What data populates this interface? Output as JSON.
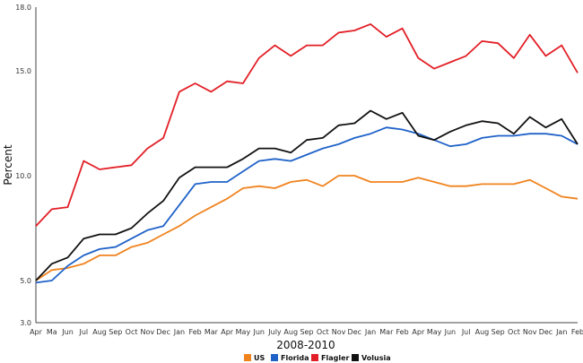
{
  "chart_data": {
    "type": "line",
    "xlabel": "2008-2010",
    "ylabel": "Percent",
    "y_ticks": [
      "3.0",
      "5.0",
      "10.0",
      "15.0",
      "18.0"
    ],
    "ylim": [
      3,
      18
    ],
    "grid": false,
    "legend_position": "bottom",
    "categories": [
      "Apr",
      "Ma",
      "Jun",
      "Jul",
      "Aug",
      "Sep",
      "Oct",
      "Nov",
      "Dec",
      "Jan",
      "Feb",
      "Mar",
      "Apr",
      "May",
      "Jun",
      "July",
      "Aug",
      "Sep",
      "Oct",
      "Nov",
      "Dec",
      "Jan",
      "Mar",
      "Feb",
      "Apr",
      "May",
      "Jun",
      "Jul",
      "Aug",
      "Sep",
      "Oct",
      "Nov",
      "Dec",
      "Jan",
      "Feb"
    ],
    "series": [
      {
        "name": "US",
        "color": "#f0831e",
        "values": [
          5.0,
          5.5,
          5.6,
          5.8,
          6.2,
          6.2,
          6.6,
          6.8,
          7.2,
          7.6,
          8.1,
          8.5,
          8.9,
          9.4,
          9.5,
          9.4,
          9.7,
          9.8,
          9.5,
          10.0,
          10.0,
          9.7,
          9.7,
          9.7,
          9.9,
          9.7,
          9.5,
          9.5,
          9.6,
          9.6,
          9.6,
          9.8,
          9.4,
          9.0,
          8.9
        ]
      },
      {
        "name": "Florida",
        "color": "#1f62c8",
        "values": [
          4.9,
          5.0,
          5.7,
          6.2,
          6.5,
          6.6,
          7.0,
          7.4,
          7.6,
          8.6,
          9.6,
          9.7,
          9.7,
          10.2,
          10.7,
          10.8,
          10.7,
          11.0,
          11.3,
          11.5,
          11.8,
          12.0,
          12.3,
          12.2,
          12.0,
          11.7,
          11.4,
          11.5,
          11.8,
          11.9,
          11.9,
          12.0,
          12.0,
          11.9,
          11.5
        ]
      },
      {
        "name": "Flagler",
        "color": "#e21f26",
        "values": [
          7.6,
          8.4,
          8.5,
          10.7,
          10.3,
          10.4,
          10.5,
          11.3,
          11.8,
          14.0,
          14.4,
          14.0,
          14.5,
          14.4,
          15.6,
          16.2,
          15.7,
          16.2,
          16.2,
          16.8,
          16.9,
          17.2,
          16.6,
          17.0,
          15.6,
          15.1,
          15.4,
          15.7,
          16.4,
          16.3,
          15.6,
          16.7,
          15.7,
          16.2,
          14.9
        ]
      },
      {
        "name": "Volusia",
        "color": "#111111",
        "values": [
          5.0,
          5.8,
          6.1,
          7.0,
          7.2,
          7.2,
          7.5,
          8.2,
          8.8,
          9.9,
          10.4,
          10.4,
          10.4,
          10.8,
          11.3,
          11.3,
          11.1,
          11.7,
          11.8,
          12.4,
          12.5,
          13.1,
          12.7,
          13.0,
          11.9,
          11.7,
          12.1,
          12.4,
          12.6,
          12.5,
          12.0,
          12.8,
          12.3,
          12.7,
          11.5
        ]
      }
    ]
  }
}
